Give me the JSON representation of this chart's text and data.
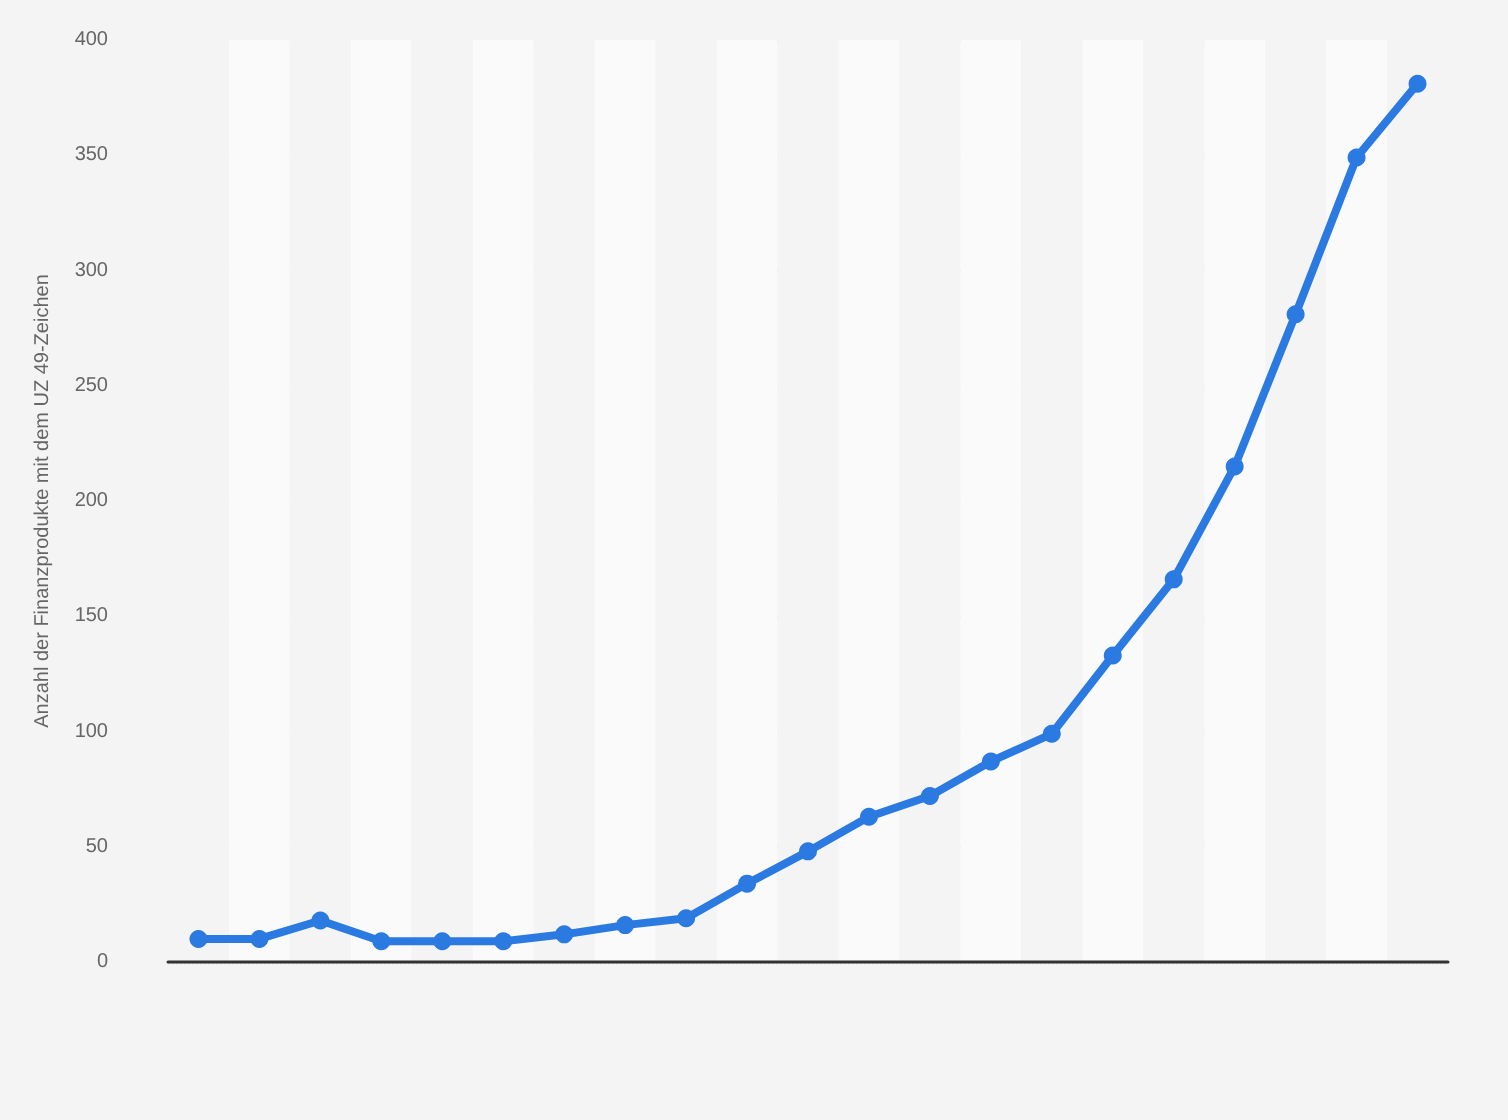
{
  "chart_data": {
    "type": "line",
    "ylabel": "Anzahl der Finanzprodukte mit dem UZ 49-Zeichen",
    "categories": [
      null,
      null,
      null,
      null,
      null,
      null,
      null,
      null,
      null,
      null,
      null,
      null,
      null,
      null,
      null,
      null,
      null,
      null,
      null,
      null,
      null
    ],
    "series": [
      {
        "color": "#2a7ae2",
        "values": [
          10,
          10,
          18,
          9,
          9,
          9,
          12,
          16,
          19,
          34,
          48,
          63,
          72,
          87,
          99,
          133,
          166,
          215,
          281,
          349,
          381
        ]
      }
    ],
    "ylim": [
      0,
      400
    ],
    "yticks": [
      0,
      50,
      100,
      150,
      200,
      250,
      300,
      350,
      400
    ],
    "grid": "y",
    "marker": "circle",
    "line_style": "solid"
  }
}
